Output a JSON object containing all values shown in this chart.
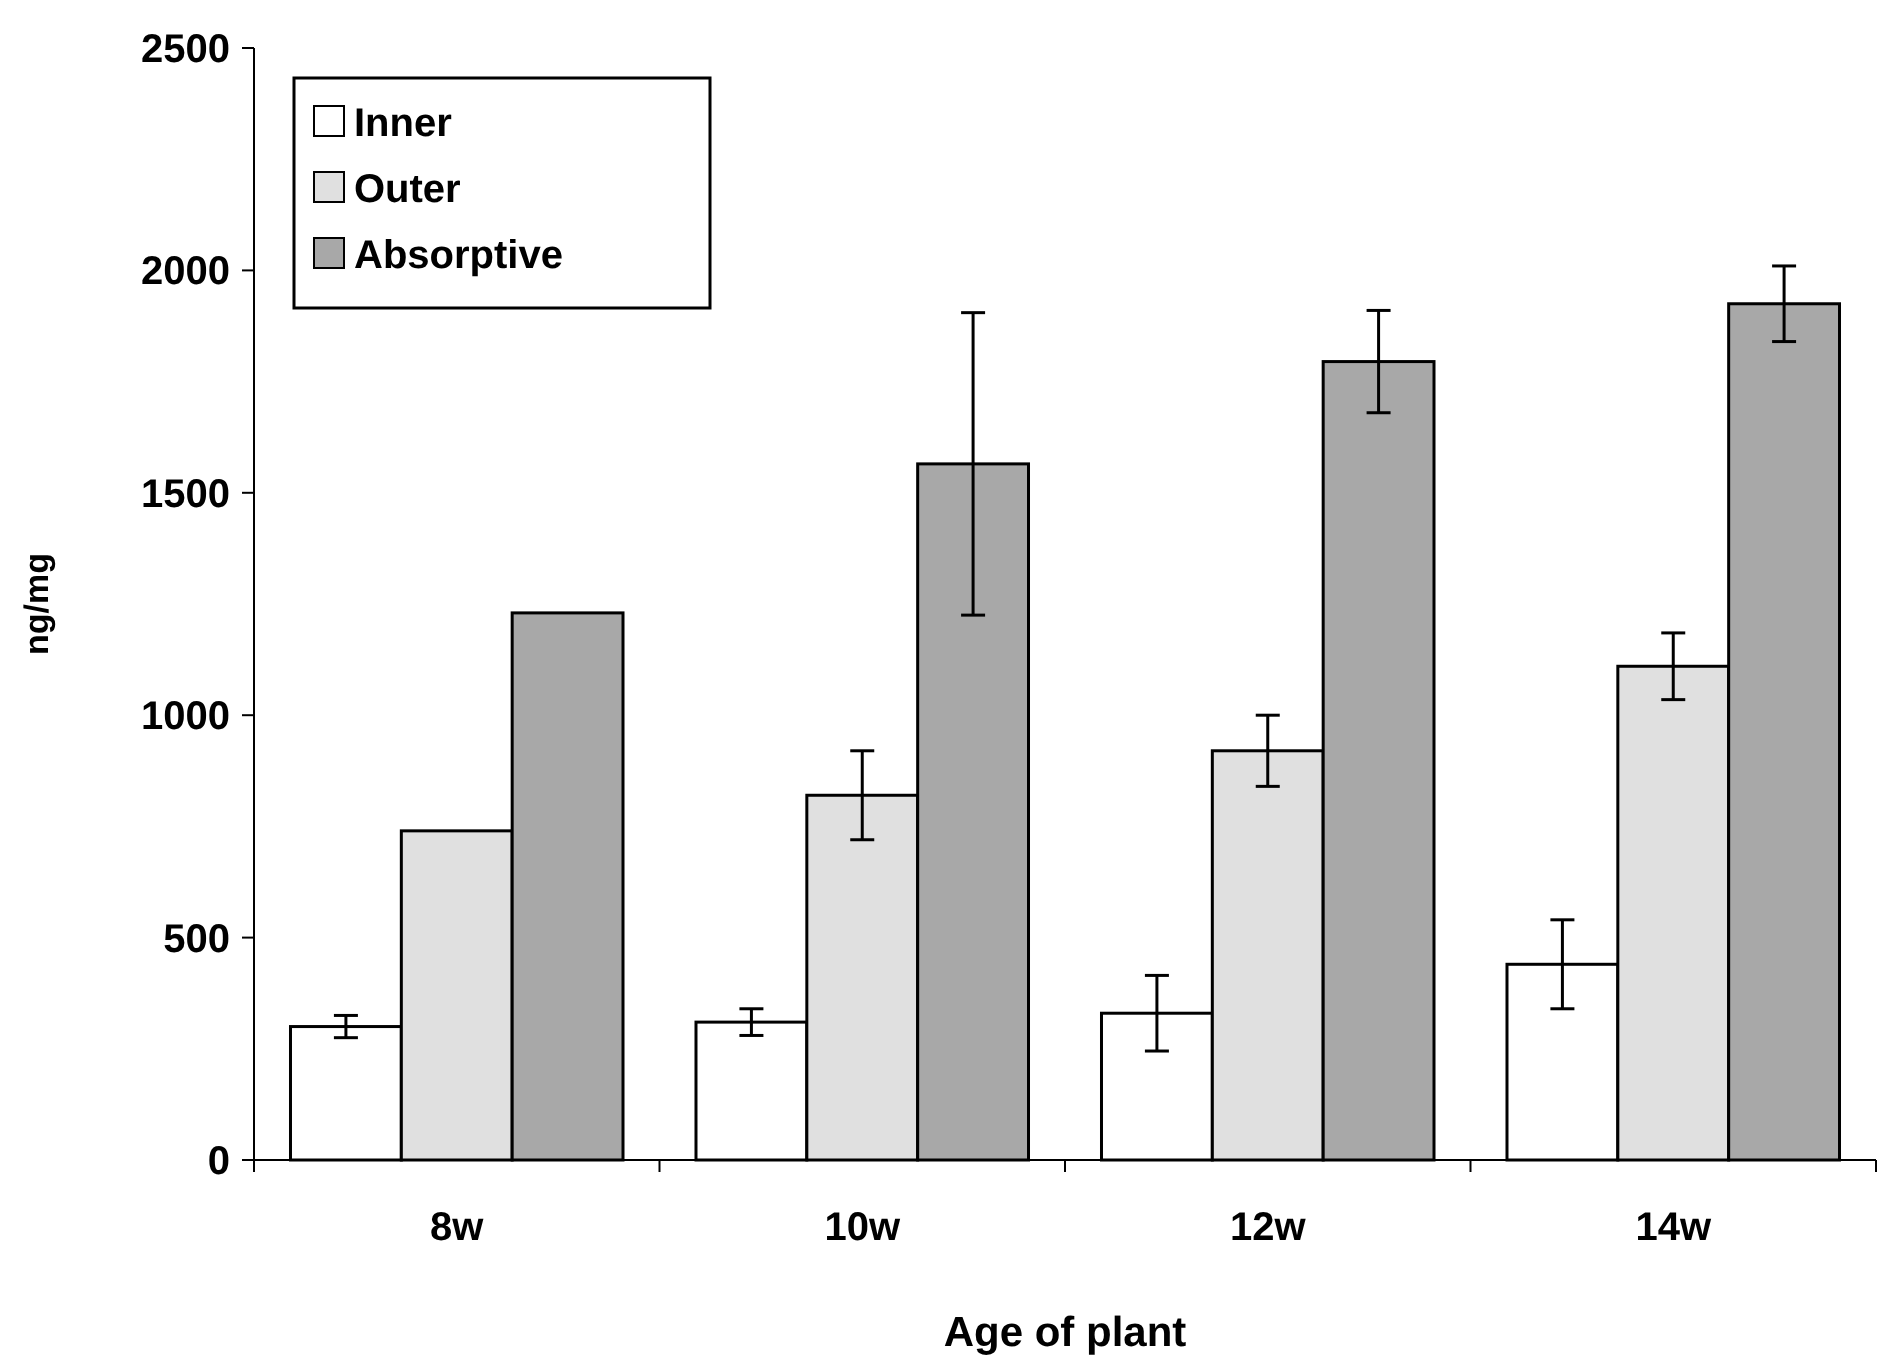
{
  "chart_data": {
    "type": "bar",
    "xlabel": "Age of plant",
    "ylabel": "ng/mg",
    "categories": [
      "8w",
      "10w",
      "12w",
      "14w"
    ],
    "series": [
      {
        "name": "Inner",
        "color": "#ffffff",
        "values": [
          300,
          310,
          330,
          440
        ],
        "errors": [
          25,
          30,
          85,
          100
        ]
      },
      {
        "name": "Outer",
        "color": "#e0e0e0",
        "values": [
          740,
          820,
          920,
          1110
        ],
        "errors": [
          null,
          100,
          80,
          75
        ]
      },
      {
        "name": "Absorptive",
        "color": "#a8a8a8",
        "values": [
          1230,
          1565,
          1795,
          1925
        ],
        "errors": [
          null,
          340,
          115,
          85
        ]
      }
    ],
    "ylim": [
      0,
      2500
    ],
    "yticks": [
      0,
      500,
      1000,
      1500,
      2000,
      2500
    ],
    "grid": false,
    "legend": "top left"
  }
}
